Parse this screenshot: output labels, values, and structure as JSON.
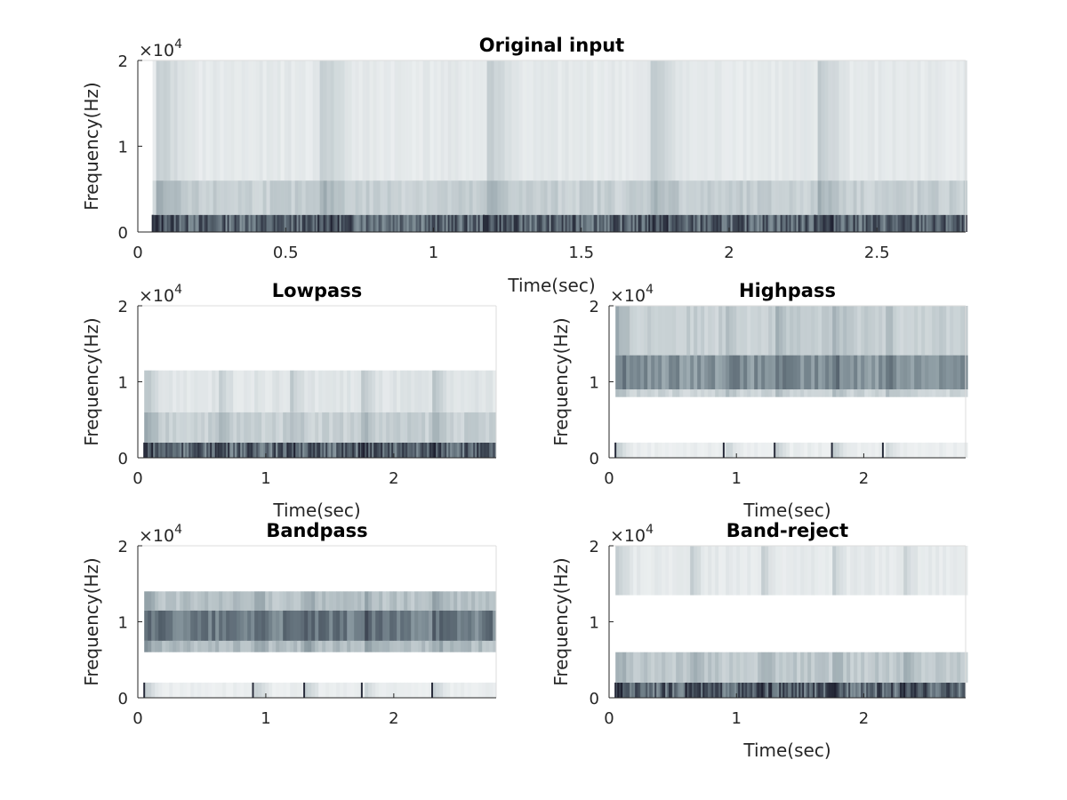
{
  "chart_data": [
    {
      "type": "heatmap",
      "title": "Original input",
      "xlabel": "Time(sec)",
      "ylabel": "Frequency(Hz)",
      "xlim": [
        0,
        2.8
      ],
      "ylim": [
        0,
        20000
      ],
      "xticks": [
        0,
        0.5,
        1,
        1.5,
        2,
        2.5
      ],
      "xtick_labels": [
        "0",
        "0.5",
        "1",
        "1.5",
        "2",
        "2.5"
      ],
      "yticks": [
        0,
        10000,
        20000
      ],
      "ytick_labels": [
        "0",
        "1",
        "2"
      ],
      "y_exponent_label": "×10",
      "y_exponent_power": "4",
      "signal_start_sec": 0.05,
      "onsets_sec": [
        0.05,
        0.61,
        1.17,
        1.73,
        2.29
      ],
      "bands": [
        {
          "f_low": 0,
          "f_high": 2000,
          "level": 0.85,
          "striped": true
        },
        {
          "f_low": 2000,
          "f_high": 6000,
          "level": 0.22
        },
        {
          "f_low": 6000,
          "f_high": 20000,
          "level": 0.1
        }
      ],
      "colormap": [
        "#ffffff",
        "#1e2030"
      ]
    },
    {
      "type": "heatmap",
      "title": "Lowpass",
      "xlabel": "Time(sec)",
      "ylabel": "Frequency(Hz)",
      "xlim": [
        0,
        2.8
      ],
      "ylim": [
        0,
        20000
      ],
      "xticks": [
        0,
        1,
        2
      ],
      "xtick_labels": [
        "0",
        "1",
        "2"
      ],
      "yticks": [
        0,
        10000,
        20000
      ],
      "ytick_labels": [
        "0",
        "1",
        "2"
      ],
      "y_exponent_label": "×10",
      "y_exponent_power": "4",
      "signal_start_sec": 0.05,
      "onsets_sec": [
        0.05,
        0.61,
        1.17,
        1.73,
        2.29
      ],
      "bands": [
        {
          "f_low": 0,
          "f_high": 2000,
          "level": 0.85,
          "striped": true
        },
        {
          "f_low": 2000,
          "f_high": 6000,
          "level": 0.22
        },
        {
          "f_low": 6000,
          "f_high": 11500,
          "level": 0.12
        }
      ],
      "colormap": [
        "#ffffff",
        "#1e2030"
      ]
    },
    {
      "type": "heatmap",
      "title": "Highpass",
      "xlabel": "Time(sec)",
      "ylabel": "Frequency(Hz)",
      "xlim": [
        0,
        2.8
      ],
      "ylim": [
        0,
        20000
      ],
      "xticks": [
        0,
        1,
        2
      ],
      "xtick_labels": [
        "0",
        "1",
        "2"
      ],
      "yticks": [
        0,
        10000,
        20000
      ],
      "ytick_labels": [
        "0",
        "1",
        "2"
      ],
      "y_exponent_label": "×10",
      "y_exponent_power": "4",
      "signal_start_sec": 0.05,
      "onsets_sec": [
        0.05,
        0.9,
        1.3,
        1.75,
        2.15
      ],
      "bands": [
        {
          "f_low": 0,
          "f_high": 2000,
          "level": 0.08
        },
        {
          "f_low": 8000,
          "f_high": 9000,
          "level": 0.2
        },
        {
          "f_low": 9000,
          "f_high": 13500,
          "level": 0.5
        },
        {
          "f_low": 13500,
          "f_high": 20000,
          "level": 0.22
        }
      ],
      "colormap": [
        "#ffffff",
        "#1e2030"
      ]
    },
    {
      "type": "heatmap",
      "title": "Bandpass",
      "xlabel": "",
      "ylabel": "Frequency(Hz)",
      "xlim": [
        0,
        2.8
      ],
      "ylim": [
        0,
        20000
      ],
      "xticks": [
        0,
        1,
        2
      ],
      "xtick_labels": [
        "0",
        "1",
        "2"
      ],
      "yticks": [
        0,
        10000,
        20000
      ],
      "ytick_labels": [
        "0",
        "1",
        "2"
      ],
      "y_exponent_label": "×10",
      "y_exponent_power": "4",
      "signal_start_sec": 0.05,
      "onsets_sec": [
        0.05,
        0.9,
        1.3,
        1.75,
        2.3
      ],
      "bands": [
        {
          "f_low": 0,
          "f_high": 2000,
          "level": 0.08
        },
        {
          "f_low": 6000,
          "f_high": 7500,
          "level": 0.3
        },
        {
          "f_low": 7500,
          "f_high": 11500,
          "level": 0.6
        },
        {
          "f_low": 11500,
          "f_high": 14000,
          "level": 0.28
        }
      ],
      "colormap": [
        "#ffffff",
        "#1e2030"
      ]
    },
    {
      "type": "heatmap",
      "title": "Band-reject",
      "xlabel": "Time(sec)",
      "ylabel": "Frequency(Hz)",
      "xlim": [
        0,
        2.8
      ],
      "ylim": [
        0,
        20000
      ],
      "xticks": [
        0,
        1,
        2
      ],
      "xtick_labels": [
        "0",
        "1",
        "2"
      ],
      "yticks": [
        0,
        10000,
        20000
      ],
      "ytick_labels": [
        "0",
        "1",
        "2"
      ],
      "y_exponent_label": "×10",
      "y_exponent_power": "4",
      "signal_start_sec": 0.05,
      "onsets_sec": [
        0.05,
        0.61,
        1.17,
        1.73,
        2.29
      ],
      "bands": [
        {
          "f_low": 0,
          "f_high": 2000,
          "level": 0.85,
          "striped": true
        },
        {
          "f_low": 2000,
          "f_high": 6000,
          "level": 0.25
        },
        {
          "f_low": 13500,
          "f_high": 20000,
          "level": 0.1
        }
      ],
      "colormap": [
        "#ffffff",
        "#1e2030"
      ]
    }
  ]
}
